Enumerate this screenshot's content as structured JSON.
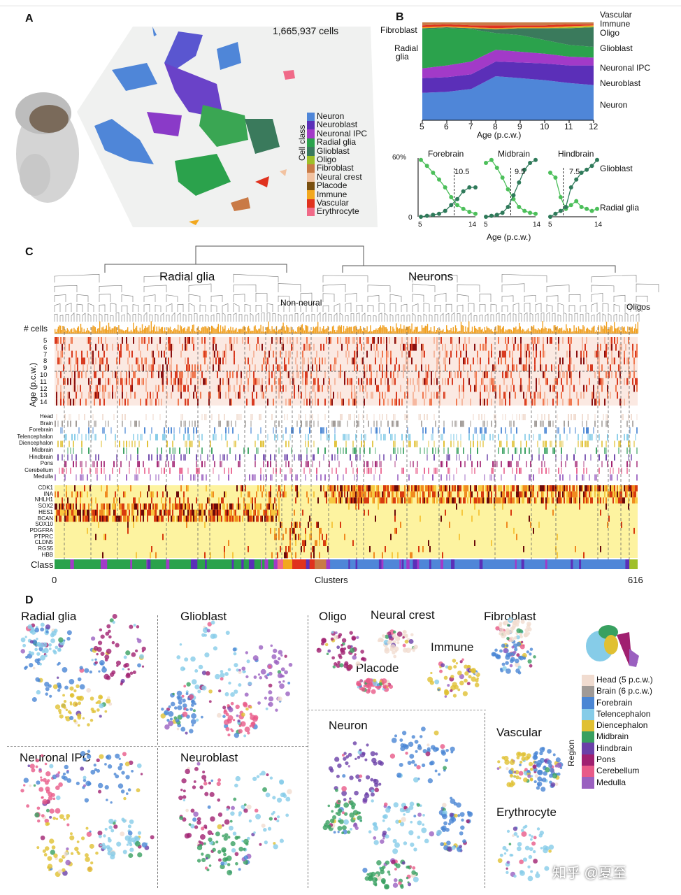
{
  "colors": {
    "neuron": "#4f86d8",
    "neuroblast": "#5b2fb8",
    "neuronal_ipc": "#a23ac8",
    "radial_glia": "#2ba24c",
    "glioblast": "#3a7a5c",
    "oligo": "#9fbf2a",
    "fibroblast": "#c97a46",
    "neural_crest": "#f2c2a0",
    "placode": "#7a5010",
    "immune": "#f2a81e",
    "vascular": "#e0321e",
    "erythrocyte": "#f06a88"
  },
  "panelA": {
    "label": "A",
    "cell_count": "1,665,937 cells",
    "legend_title": "Cell class",
    "legend": [
      {
        "name": "Neuron",
        "color": "#4f86d8"
      },
      {
        "name": "Neuroblast",
        "color": "#5b2fb8"
      },
      {
        "name": "Neuronal IPC",
        "color": "#a23ac8"
      },
      {
        "name": "Radial glia",
        "color": "#2ba24c"
      },
      {
        "name": "Glioblast",
        "color": "#3a7a5c"
      },
      {
        "name": "Oligo",
        "color": "#9fbf2a"
      },
      {
        "name": "Fibroblast",
        "color": "#c97a46"
      },
      {
        "name": "Neural crest",
        "color": "#f2c2a0"
      },
      {
        "name": "Placode",
        "color": "#7a5010"
      },
      {
        "name": "Immune",
        "color": "#f2a81e"
      },
      {
        "name": "Vascular",
        "color": "#e0321e"
      },
      {
        "name": "Erythrocyte",
        "color": "#f06a88"
      }
    ]
  },
  "panelB": {
    "label": "B",
    "left_labels": [
      "Fibroblast",
      "Radial",
      "glia"
    ],
    "right_labels": [
      "Vascular",
      "Immune",
      "Oligo",
      "Glioblast",
      "Neuronal IPC",
      "Neuroblast",
      "Neuron"
    ],
    "xlabel": "Age (p.c.w.)",
    "xticks": [
      "5",
      "6",
      "7",
      "8",
      "9",
      "10",
      "11",
      "12"
    ],
    "ytick": "60%",
    "ytick0": "0",
    "small_titles": [
      "Forebrain",
      "Midbrain",
      "Hindbrain"
    ],
    "small_cutoffs": [
      "10.5",
      "9.5",
      "7.5"
    ],
    "small_xticks": [
      "5",
      "14"
    ],
    "small_right_labels": [
      "Glioblast",
      "Radial glia"
    ],
    "small_xlabel": "Age (p.c.w.)"
  },
  "chart_data": [
    {
      "type": "area",
      "title": "",
      "xlabel": "Age (p.c.w.)",
      "ylabel": "",
      "x": [
        5,
        6,
        7,
        8,
        9,
        10,
        11,
        12
      ],
      "stacked": true,
      "series": [
        {
          "name": "Neuron",
          "values": [
            0.28,
            0.29,
            0.32,
            0.45,
            0.43,
            0.41,
            0.38,
            0.36
          ]
        },
        {
          "name": "Neuroblast",
          "values": [
            0.15,
            0.15,
            0.15,
            0.15,
            0.16,
            0.17,
            0.18,
            0.2
          ]
        },
        {
          "name": "Neuronal IPC",
          "values": [
            0.1,
            0.12,
            0.13,
            0.12,
            0.11,
            0.1,
            0.09,
            0.08
          ]
        },
        {
          "name": "Radial glia",
          "values": [
            0.4,
            0.38,
            0.33,
            0.17,
            0.17,
            0.14,
            0.12,
            0.11
          ]
        },
        {
          "name": "Glioblast",
          "values": [
            0.01,
            0.01,
            0.01,
            0.04,
            0.07,
            0.12,
            0.17,
            0.2
          ]
        },
        {
          "name": "Oligo",
          "values": [
            0.0,
            0.0,
            0.0,
            0.0,
            0.0,
            0.0,
            0.01,
            0.01
          ]
        },
        {
          "name": "Immune",
          "values": [
            0.01,
            0.01,
            0.01,
            0.01,
            0.01,
            0.01,
            0.01,
            0.01
          ]
        },
        {
          "name": "Vascular",
          "values": [
            0.02,
            0.02,
            0.02,
            0.03,
            0.02,
            0.02,
            0.02,
            0.01
          ]
        },
        {
          "name": "Fibroblast",
          "values": [
            0.03,
            0.02,
            0.03,
            0.03,
            0.03,
            0.03,
            0.02,
            0.02
          ]
        }
      ]
    },
    {
      "type": "line",
      "title": "Forebrain",
      "xlabel": "Age (p.c.w.)",
      "ylim": [
        0,
        60
      ],
      "x": [
        5,
        6,
        7,
        8,
        9,
        10,
        11,
        12,
        13,
        14
      ],
      "cutoff": 10.5,
      "series": [
        {
          "name": "Radial glia",
          "values": [
            58,
            52,
            45,
            38,
            30,
            20,
            12,
            8,
            5,
            3
          ]
        },
        {
          "name": "Glioblast",
          "values": [
            0,
            1,
            2,
            3,
            6,
            12,
            18,
            26,
            30,
            30
          ]
        }
      ]
    },
    {
      "type": "line",
      "title": "Midbrain",
      "xlabel": "Age (p.c.w.)",
      "ylim": [
        0,
        60
      ],
      "x": [
        5,
        6,
        7,
        8,
        9,
        10,
        11,
        12,
        13,
        14
      ],
      "cutoff": 9.5,
      "series": [
        {
          "name": "Radial glia",
          "values": [
            55,
            58,
            50,
            40,
            28,
            18,
            10,
            6,
            4,
            3
          ]
        },
        {
          "name": "Glioblast",
          "values": [
            0,
            1,
            2,
            4,
            10,
            22,
            35,
            48,
            55,
            58
          ]
        }
      ]
    },
    {
      "type": "line",
      "title": "Hindbrain",
      "xlabel": "Age (p.c.w.)",
      "ylim": [
        0,
        60
      ],
      "x": [
        5,
        6,
        7,
        8,
        9,
        10,
        11,
        12,
        13,
        14
      ],
      "cutoff": 7.5,
      "series": [
        {
          "name": "Radial glia",
          "values": [
            45,
            40,
            20,
            8,
            12,
            16,
            10,
            8,
            6,
            8
          ]
        },
        {
          "name": "Glioblast",
          "values": [
            0,
            3,
            6,
            10,
            30,
            38,
            45,
            48,
            52,
            58
          ]
        }
      ]
    }
  ],
  "panelC": {
    "label": "C",
    "dendro_labels": [
      "Radial glia",
      "Neurons",
      "Non-neural",
      "Oligos"
    ],
    "row_label_cells": "# cells",
    "age_axis_label": "Age (p.c.w.)",
    "ages": [
      "5",
      "6",
      "7",
      "8",
      "9",
      "10",
      "11",
      "12",
      "13",
      "14"
    ],
    "regions": [
      "Head",
      "Brain",
      "Forebrain",
      "Telencephalon",
      "Diencephalon",
      "Midbrain",
      "Hindbrain",
      "Pons",
      "Cerebellum",
      "Medulla"
    ],
    "genes": [
      "CDK1",
      "INA",
      "NHLH1",
      "SOX2",
      "HES1",
      "BCAN",
      "SOX10",
      "PDGFRA",
      "PTPRC",
      "CLDN5",
      "RGS5",
      "HBB"
    ],
    "class_label": "Class",
    "x_start": "0",
    "x_end": "616",
    "x_label": "Clusters"
  },
  "panelD": {
    "label": "D",
    "titles": [
      "Radial glia",
      "Glioblast",
      "Oligo",
      "Neural crest",
      "Fibroblast",
      "Immune",
      "Placode",
      "Neuronal IPC",
      "Neuroblast",
      "Neuron",
      "Vascular",
      "Erythrocyte"
    ],
    "legend_title": "Region",
    "legend": [
      {
        "name": "Head (5 p.c.w.)",
        "color": "#f1dcd0"
      },
      {
        "name": "Brain (6 p.c.w.)",
        "color": "#a09a96"
      },
      {
        "name": "Forebrain",
        "color": "#4a86d4"
      },
      {
        "name": "Telencephalon",
        "color": "#86cce8"
      },
      {
        "name": "Diencephalon",
        "color": "#e0c032"
      },
      {
        "name": "Midbrain",
        "color": "#38a060"
      },
      {
        "name": "Hindbrain",
        "color": "#6a40a8"
      },
      {
        "name": "Pons",
        "color": "#a02070"
      },
      {
        "name": "Cerebellum",
        "color": "#e85a88"
      },
      {
        "name": "Medulla",
        "color": "#9a60c0"
      }
    ],
    "watermark": "知乎 @夏至"
  }
}
